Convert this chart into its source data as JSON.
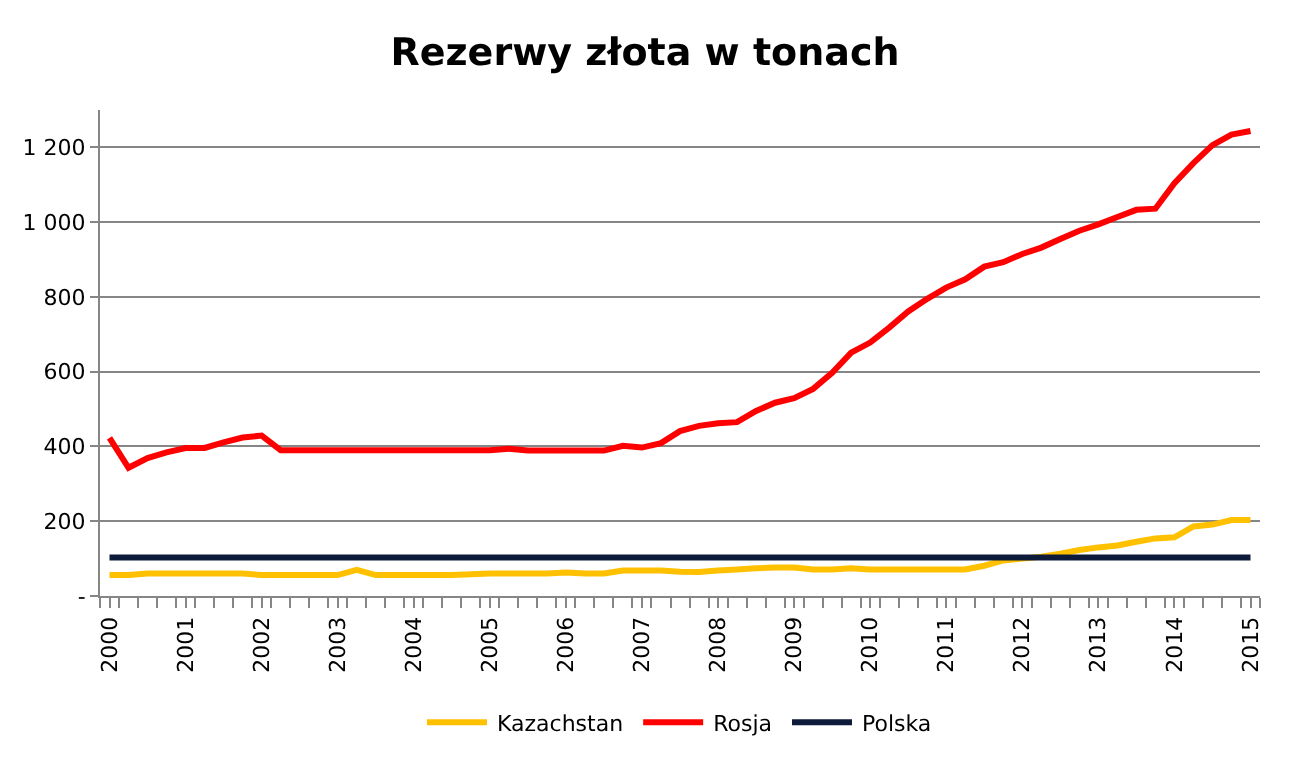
{
  "chart_data": {
    "type": "line",
    "title": "Rezerwy złota w tonach",
    "categories": [
      "2000",
      null,
      null,
      null,
      "2001",
      null,
      null,
      null,
      "2002",
      null,
      null,
      null,
      "2003",
      null,
      null,
      null,
      "2004",
      null,
      null,
      null,
      "2005",
      null,
      null,
      null,
      "2006",
      null,
      null,
      null,
      "2007",
      null,
      null,
      null,
      "2008",
      null,
      null,
      null,
      "2009",
      null,
      null,
      null,
      "2010",
      null,
      null,
      null,
      "2011",
      null,
      null,
      null,
      "2012",
      null,
      null,
      null,
      "2013",
      null,
      null,
      null,
      "2014",
      null,
      null,
      null,
      "2015"
    ],
    "series": [
      {
        "name": "Kazachstan",
        "color": "#ffc000",
        "values": [
          56,
          56,
          60,
          60,
          60,
          60,
          60,
          60,
          56,
          56,
          56,
          56,
          56,
          70,
          56,
          56,
          56,
          56,
          56,
          58,
          60,
          60,
          60,
          60,
          63,
          60,
          60,
          68,
          68,
          68,
          65,
          64,
          68,
          71,
          74,
          76,
          76,
          71,
          71,
          74,
          71,
          71,
          71,
          71,
          71,
          71,
          81,
          95,
          100,
          105,
          113,
          123,
          130,
          135,
          145,
          154,
          157,
          186,
          191,
          203,
          203
        ]
      },
      {
        "name": "Rosja",
        "color": "#ff0000",
        "values": [
          423,
          343,
          369,
          384,
          396,
          396,
          411,
          424,
          429,
          390,
          390,
          390,
          390,
          390,
          390,
          390,
          390,
          390,
          390,
          390,
          390,
          394,
          389,
          389,
          389,
          389,
          389,
          402,
          397,
          409,
          441,
          455,
          462,
          465,
          495,
          517,
          529,
          554,
          597,
          651,
          678,
          718,
          761,
          795,
          825,
          847,
          881,
          893,
          915,
          932,
          955,
          977,
          994,
          1014,
          1033,
          1036,
          1104,
          1158,
          1206,
          1234,
          1244
        ]
      },
      {
        "name": "Polska",
        "color": "#0d1a3a",
        "values": [
          103,
          103,
          103,
          103,
          103,
          103,
          103,
          103,
          103,
          103,
          103,
          103,
          103,
          103,
          103,
          103,
          103,
          103,
          103,
          103,
          103,
          103,
          103,
          103,
          103,
          103,
          103,
          103,
          103,
          103,
          103,
          103,
          103,
          103,
          103,
          103,
          103,
          103,
          103,
          103,
          103,
          103,
          103,
          103,
          103,
          103,
          103,
          103,
          103,
          103,
          103,
          103,
          103,
          103,
          103,
          103,
          103,
          103,
          103,
          103,
          103
        ]
      }
    ],
    "ylim": [
      0,
      1300
    ],
    "yticks": [
      {
        "value": 0,
        "label": "-"
      },
      200,
      400,
      600,
      800,
      {
        "value": 1000,
        "label": "1 000"
      },
      {
        "value": 1200,
        "label": "1 200"
      }
    ],
    "grid": "y",
    "legend": "bottom",
    "line_style": "solid",
    "marker": "none"
  }
}
